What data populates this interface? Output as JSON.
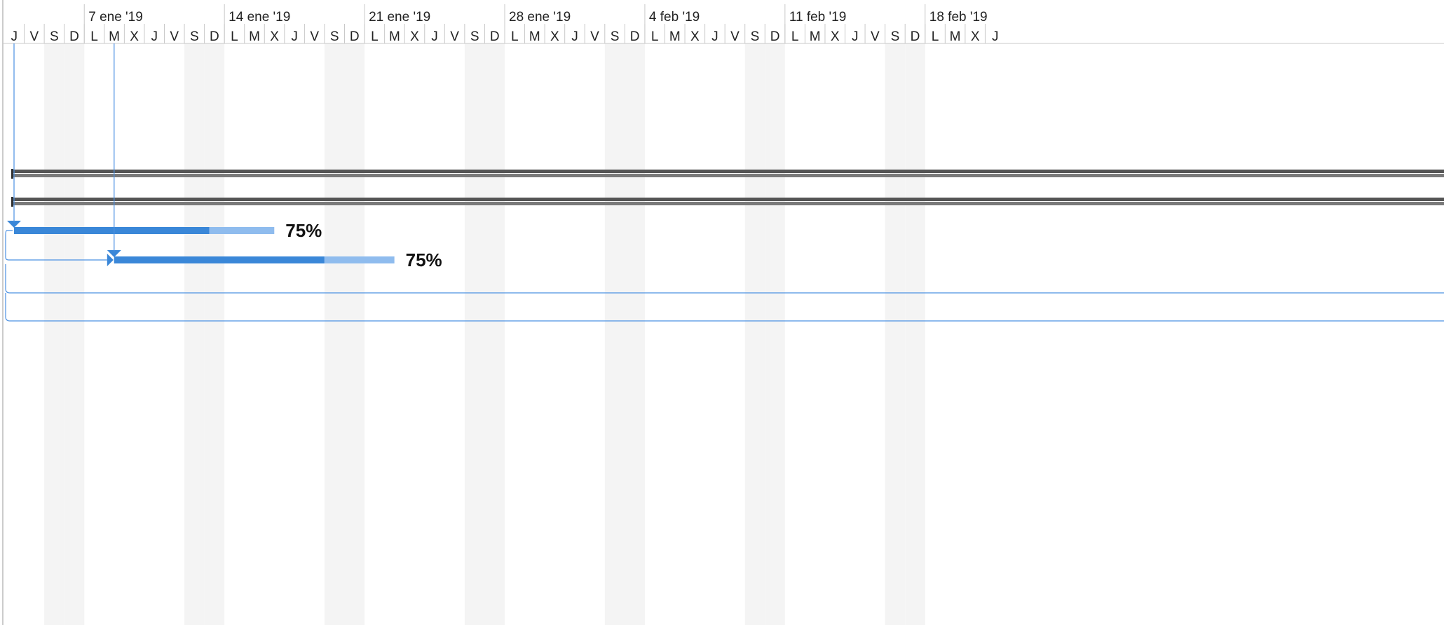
{
  "timescale": {
    "week_labels": [
      "7 ene '19",
      "14 ene '19",
      "21 ene '19",
      "28 ene '19",
      "4 feb '19",
      "11 feb '19",
      "18 feb '19"
    ],
    "day_labels": [
      "J",
      "V",
      "S",
      "D",
      "L",
      "M",
      "X",
      "J",
      "V",
      "S",
      "D",
      "L",
      "M",
      "X",
      "J",
      "V",
      "S",
      "D",
      "L",
      "M",
      "X",
      "J",
      "V",
      "S",
      "D",
      "L",
      "M",
      "X",
      "J",
      "V",
      "S",
      "D",
      "L",
      "M",
      "X",
      "J",
      "V",
      "S",
      "D",
      "L",
      "M",
      "X",
      "J",
      "V",
      "S",
      "D",
      "L",
      "M",
      "X",
      "J"
    ],
    "weekend_days": [
      "S",
      "D"
    ]
  },
  "tasks": [
    {
      "id": "summary-1",
      "type": "summary",
      "label": ""
    },
    {
      "id": "summary-2",
      "type": "summary",
      "label": ""
    },
    {
      "id": "task-1",
      "type": "task",
      "start_day": 0,
      "duration_days": 13,
      "progress": 0.75,
      "progress_label": "75%"
    },
    {
      "id": "task-2",
      "type": "task",
      "start_day": 5,
      "duration_days": 14,
      "progress": 0.75,
      "progress_label": "75%"
    }
  ],
  "status_date": {
    "day_index": 5
  },
  "colors": {
    "weekend_shade": "#f4f4f4",
    "grid_line": "#c8c8c8",
    "summary_bar": "#7a7a7a",
    "summary_bar_dark": "#555555",
    "progress_done": "#3a87d8",
    "progress_remaining": "#8fbcee",
    "link_line": "#4a90e2",
    "status_line": "#4a90e2"
  }
}
